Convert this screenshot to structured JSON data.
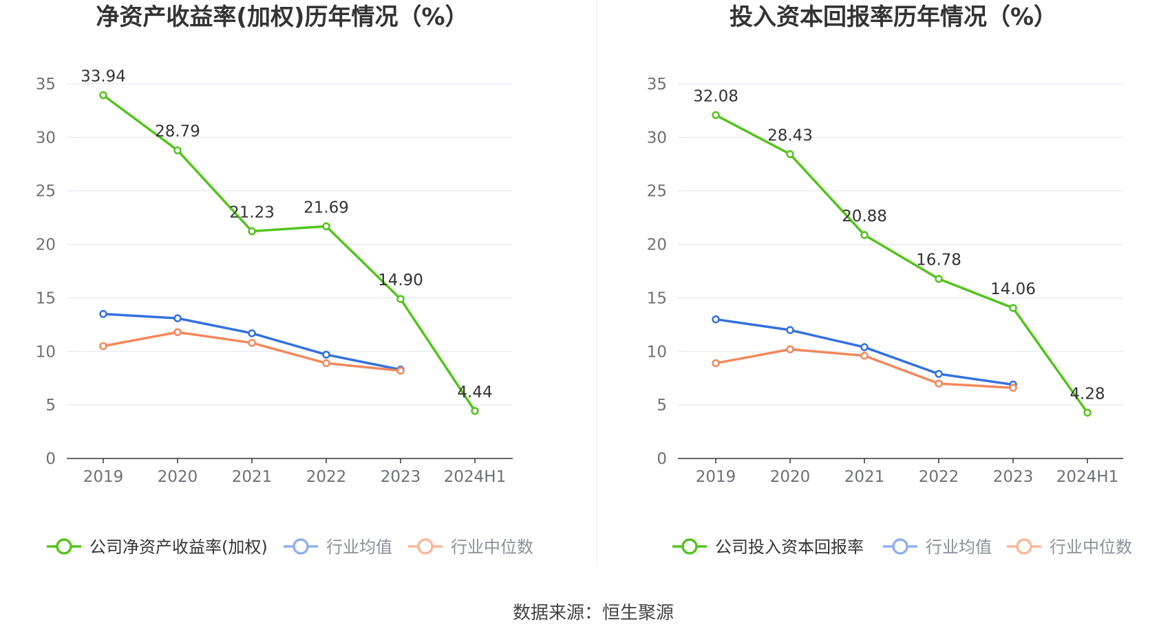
{
  "source_text": "数据来源：恒生聚源",
  "colors": {
    "company": "#52c41a",
    "industry_avg": "#3370e0",
    "industry_median": "#f4875b",
    "grid": "#dde3ef",
    "axis": "#333333",
    "legend_avg": "#8fb0f0",
    "legend_median": "#f8b79a"
  },
  "chart_data": [
    {
      "type": "line",
      "title": "净资产收益率(加权)历年情况（%）",
      "categories": [
        "2019",
        "2020",
        "2021",
        "2022",
        "2023",
        "2024H1"
      ],
      "ylim": [
        0,
        35
      ],
      "yticks": [
        0,
        5,
        10,
        15,
        20,
        25,
        30,
        35
      ],
      "grid": true,
      "legend_position": "bottom",
      "series": [
        {
          "name": "公司净资产收益率(加权)",
          "key": "company",
          "values": [
            33.94,
            28.79,
            21.23,
            21.69,
            14.9,
            4.44
          ],
          "labels": [
            "33.94",
            "28.79",
            "21.23",
            "21.69",
            "14.90",
            "4.44"
          ]
        },
        {
          "name": "行业均值",
          "key": "industry_avg",
          "values": [
            13.5,
            13.1,
            11.7,
            9.7,
            8.3,
            null
          ]
        },
        {
          "name": "行业中位数",
          "key": "industry_median",
          "values": [
            10.5,
            11.8,
            10.8,
            8.9,
            8.2,
            null
          ]
        }
      ]
    },
    {
      "type": "line",
      "title": "投入资本回报率历年情况（%）",
      "categories": [
        "2019",
        "2020",
        "2021",
        "2022",
        "2023",
        "2024H1"
      ],
      "ylim": [
        0,
        35
      ],
      "yticks": [
        0,
        5,
        10,
        15,
        20,
        25,
        30,
        35
      ],
      "grid": true,
      "legend_position": "bottom",
      "series": [
        {
          "name": "公司投入资本回报率",
          "key": "company",
          "values": [
            32.08,
            28.43,
            20.88,
            16.78,
            14.06,
            4.28
          ],
          "labels": [
            "32.08",
            "28.43",
            "20.88",
            "16.78",
            "14.06",
            "4.28"
          ]
        },
        {
          "name": "行业均值",
          "key": "industry_avg",
          "values": [
            13.0,
            12.0,
            10.4,
            7.9,
            6.9,
            null
          ]
        },
        {
          "name": "行业中位数",
          "key": "industry_median",
          "values": [
            8.9,
            10.2,
            9.6,
            7.0,
            6.6,
            null
          ]
        }
      ]
    }
  ]
}
